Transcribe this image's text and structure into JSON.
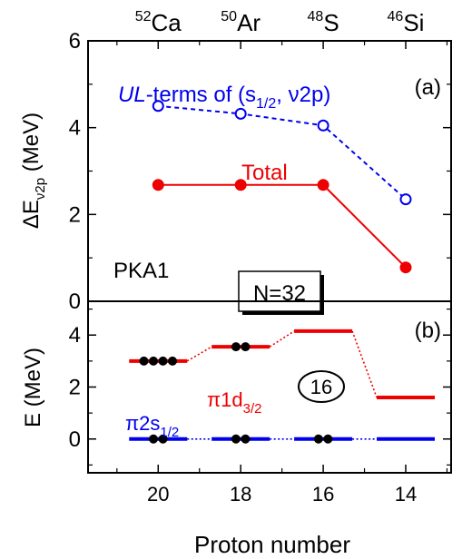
{
  "top_axis": {
    "nuclei": [
      {
        "mass": "52",
        "symbol": "Ca",
        "Z": 20
      },
      {
        "mass": "50",
        "symbol": "Ar",
        "Z": 18
      },
      {
        "mass": "48",
        "symbol": "S",
        "Z": 16
      },
      {
        "mass": "46",
        "symbol": "Si",
        "Z": 14
      }
    ]
  },
  "x_axis": {
    "label": "Proton number",
    "ticks": [
      20,
      18,
      16,
      14
    ],
    "tick_labels": [
      "20",
      "18",
      "16",
      "14"
    ],
    "range": [
      21.7,
      12.9
    ]
  },
  "colors": {
    "blue": "#0000ee",
    "red": "#ee0000",
    "black": "#000000"
  },
  "chart_data": [
    {
      "type": "line",
      "panel_label": "(a)",
      "ylabel_main": "ΔE",
      "ylabel_sub": "ν2p",
      "ylabel_unit": " (MeV)",
      "ylim": [
        0,
        6
      ],
      "yticks": [
        0,
        2,
        4,
        6
      ],
      "ytick_labels": [
        "0",
        "2",
        "4",
        "6"
      ],
      "x": [
        20,
        18,
        16,
        14
      ],
      "series": [
        {
          "name_parts": [
            "UL",
            "-terms of (s",
            "1/2",
            ", ν2p)"
          ],
          "values": [
            4.5,
            4.32,
            4.05,
            2.35
          ],
          "color": "#0000ee",
          "style": "dashed",
          "marker": "open-circle"
        },
        {
          "name_parts": [
            "Total"
          ],
          "values": [
            2.68,
            2.68,
            2.68,
            0.78
          ],
          "color": "#ee0000",
          "style": "solid",
          "marker": "filled-circle"
        }
      ],
      "annotations": {
        "model": "PKA1",
        "shell": "N=32"
      }
    },
    {
      "type": "line",
      "panel_label": "(b)",
      "ylabel_main": "E (MeV)",
      "ylim": [
        -1.3,
        5.3
      ],
      "yticks": [
        0,
        2,
        4
      ],
      "ytick_labels": [
        "0",
        "2",
        "4"
      ],
      "x": [
        20,
        18,
        16,
        14
      ],
      "levels": [
        {
          "name_main": "π1d",
          "name_sub": "3/2",
          "color": "#ee0000",
          "values": [
            3.0,
            3.55,
            4.15,
            1.6
          ],
          "occupation": [
            4,
            2,
            0,
            0
          ]
        },
        {
          "name_main": "π2s",
          "name_sub": "1/2",
          "color": "#0000ee",
          "values": [
            0,
            0,
            0,
            0
          ],
          "occupation": [
            2,
            2,
            2,
            0
          ]
        }
      ],
      "gap_label": "16"
    }
  ]
}
